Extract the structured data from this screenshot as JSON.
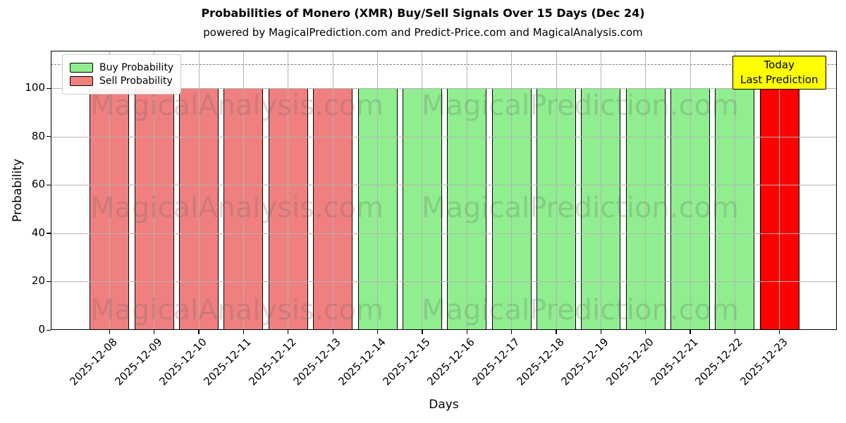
{
  "title": "Probabilities of Monero (XMR) Buy/Sell Signals Over 15 Days (Dec 24)",
  "subtitle": "powered by MagicalPrediction.com and Predict-Price.com and MagicalAnalysis.com",
  "legend": {
    "items": [
      {
        "label": "Buy Probability",
        "color": "#90EE90"
      },
      {
        "label": "Sell Probability",
        "color": "#F08080"
      }
    ]
  },
  "annotation": {
    "line1": "Today",
    "line2": "Last Prediction",
    "bg_color": "#FFFF00"
  },
  "watermarks": {
    "left": "MagicalAnalysis.com",
    "right": "MagicalPrediction.com"
  },
  "colors": {
    "buy": "#90EE90",
    "sell": "#F08080",
    "today": "#FF0000",
    "grid": "#b3b3b3",
    "dashed_line": "#7f7f7f",
    "annotation_bg": "#FFFF00"
  },
  "chart_data": {
    "type": "bar",
    "title": "Probabilities of Monero (XMR) Buy/Sell Signals Over 15 Days (Dec 24)",
    "xlabel": "Days",
    "ylabel": "Probability",
    "ylim": [
      0,
      115.5
    ],
    "yticks": [
      0,
      20,
      40,
      60,
      80,
      100
    ],
    "grid": true,
    "legend_position": "upper left",
    "dashed_line_y": 110,
    "categories": [
      "2025-12-08",
      "2025-12-09",
      "2025-12-10",
      "2025-12-11",
      "2025-12-12",
      "2025-12-13",
      "2025-12-14",
      "2025-12-15",
      "2025-12-16",
      "2025-12-17",
      "2025-12-18",
      "2025-12-19",
      "2025-12-20",
      "2025-12-21",
      "2025-12-22",
      "2025-12-23"
    ],
    "values": [
      100,
      100,
      100,
      100,
      100,
      100,
      100,
      100,
      100,
      100,
      100,
      100,
      100,
      100,
      100,
      100
    ],
    "signals": [
      "sell",
      "sell",
      "sell",
      "sell",
      "sell",
      "sell",
      "buy",
      "buy",
      "buy",
      "buy",
      "buy",
      "buy",
      "buy",
      "buy",
      "buy",
      "today"
    ],
    "series": [
      {
        "name": "Sell Probability",
        "color": "#F08080",
        "values": [
          100,
          100,
          100,
          100,
          100,
          100,
          0,
          0,
          0,
          0,
          0,
          0,
          0,
          0,
          0,
          0
        ]
      },
      {
        "name": "Buy Probability",
        "color": "#90EE90",
        "values": [
          0,
          0,
          0,
          0,
          0,
          0,
          100,
          100,
          100,
          100,
          100,
          100,
          100,
          100,
          100,
          0
        ]
      },
      {
        "name": "Today / Last Prediction",
        "color": "#FF0000",
        "values": [
          0,
          0,
          0,
          0,
          0,
          0,
          0,
          0,
          0,
          0,
          0,
          0,
          0,
          0,
          0,
          100
        ]
      }
    ]
  }
}
